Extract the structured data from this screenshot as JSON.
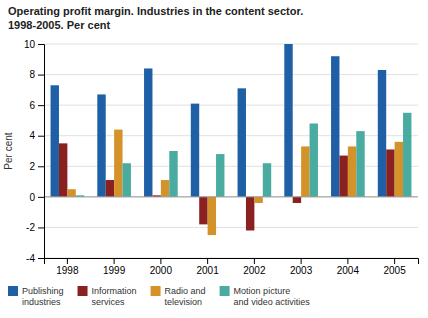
{
  "chart_data": {
    "type": "bar",
    "title": "Operating profit margin. Industries in the content sector.\n1998-2005. Per cent",
    "y_label": "Per cent",
    "categories": [
      "1998",
      "1999",
      "2000",
      "2001",
      "2002",
      "2003",
      "2004",
      "2005"
    ],
    "series": [
      {
        "name": "Publishing\nindustries",
        "color": "#1f5fa6",
        "values": [
          7.3,
          6.7,
          8.4,
          6.1,
          7.1,
          10.0,
          9.2,
          8.3
        ]
      },
      {
        "name": "Information\nservices",
        "color": "#8b2020",
        "values": [
          3.5,
          1.1,
          0.1,
          -1.8,
          -2.2,
          -0.4,
          2.7,
          3.1
        ]
      },
      {
        "name": "Radio and\ntelevision",
        "color": "#d4922a",
        "values": [
          0.5,
          4.4,
          1.1,
          -2.5,
          -0.4,
          3.3,
          3.3,
          3.6
        ]
      },
      {
        "name": "Motion picture\nand video activities",
        "color": "#4aaca0",
        "values": [
          0.1,
          2.2,
          3.0,
          2.8,
          2.2,
          4.8,
          4.3,
          5.5
        ]
      }
    ],
    "ylim": [
      -4,
      10
    ],
    "yticks": [
      -4,
      -2,
      0,
      2,
      4,
      6,
      8,
      10
    ],
    "grid": true,
    "legend": "bottom"
  }
}
